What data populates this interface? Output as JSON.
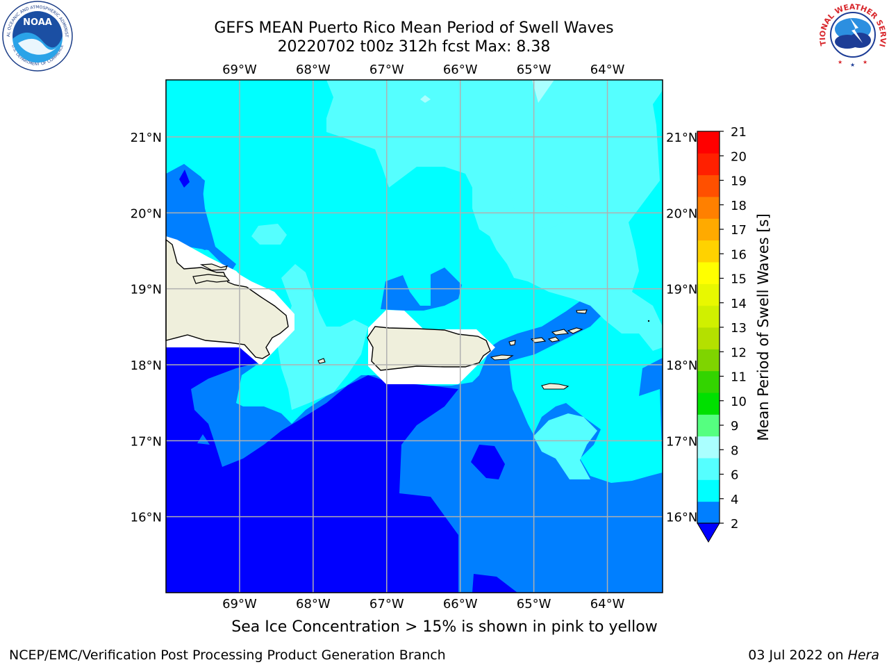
{
  "title": {
    "line1": "GEFS MEAN Puerto Rico Mean Period of Swell Waves",
    "line2": "20220702 t00z 312h fcst   Max: 8.38"
  },
  "logos": {
    "left": "NOAA",
    "left_ring_top": "NATIONAL OCEANIC AND ATMOSPHERIC ADMINISTRATION",
    "left_ring_bottom": "U.S. DEPARTMENT OF COMMERCE",
    "right_ring": "NATIONAL WEATHER SERVICE"
  },
  "map": {
    "lon_labels": [
      "69°W",
      "68°W",
      "67°W",
      "66°W",
      "65°W",
      "64°W"
    ],
    "lat_labels": [
      "21°N",
      "20°N",
      "19°N",
      "18°N",
      "17°N",
      "16°N"
    ],
    "lon_range": [
      -70,
      -63.25
    ],
    "lat_range": [
      15,
      21.75
    ],
    "grid": true,
    "colors": {
      "band_2_4": "#007fff",
      "band_4_6": "#00ffff",
      "band_6_8": "#55ffff",
      "band_8_9": "#aaffff",
      "below_2": "#0000ff",
      "land": "#efefdc",
      "ice_mask": "#ffffff"
    }
  },
  "colorbar": {
    "label": "Mean Period of Swell Waves [s]",
    "ticks": [
      "21",
      "20",
      "19",
      "18",
      "17",
      "16",
      "15",
      "14",
      "13",
      "12",
      "11",
      "10",
      "9",
      "8",
      "6",
      "4",
      "2"
    ],
    "colors_bottom_to_top": [
      "#007fff",
      "#00ffff",
      "#55ffff",
      "#aaffff",
      "#55ff80",
      "#00e000",
      "#33d400",
      "#7fd400",
      "#b4e000",
      "#d0f000",
      "#e8f800",
      "#ffff00",
      "#ffd200",
      "#ffaa00",
      "#ff8000",
      "#ff5000",
      "#ff2000",
      "#ff0000"
    ],
    "extend_color": "#0000ff"
  },
  "note": "Sea Ice Concentration > 15% is shown in pink to yellow",
  "footer": {
    "left": "NCEP/EMC/Verification Post Processing Product Generation Branch",
    "right_date": "03 Jul 2022 on ",
    "right_host": "Hera"
  }
}
